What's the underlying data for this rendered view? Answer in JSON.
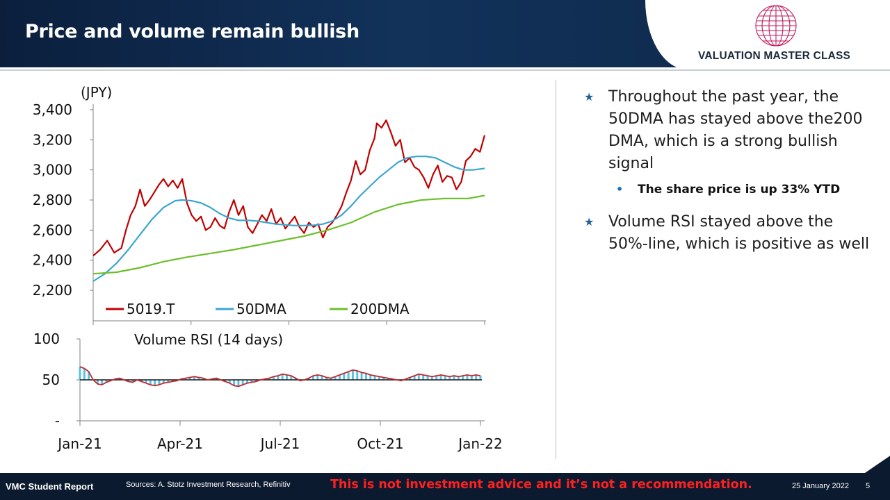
{
  "slide": {
    "title": "Price and volume remain bullish",
    "logo_text": "VALUATION MASTER CLASS"
  },
  "bullets": [
    {
      "text": "Throughout the past year, the 50DMA has stayed above the200 DMA, which is a strong bullish signal"
    },
    {
      "sub": "The share price is up 33% YTD"
    },
    {
      "text": "Volume RSI stayed above the 50%-line, which is positive as well"
    }
  ],
  "footer": {
    "left": "VMC Student Report",
    "sources": "Sources: A. Stotz Investment Research, Refinitiv",
    "warning": "This is not investment advice and it’s not a recommendation.",
    "date": "25 January 2022",
    "page": "5"
  },
  "colors": {
    "price": "#c00000",
    "dma50": "#3aa6d0",
    "dma200": "#6cbf2a",
    "rsi_fill": "#5bc0e6",
    "rsi_line": "#c0282d",
    "header_bg": "#0e2748",
    "warning": "#ff2020"
  },
  "chart_data": [
    {
      "type": "line",
      "ylabel": "(JPY)",
      "ylim": [
        2200,
        3400
      ],
      "yticks": [
        "3,400",
        "3,200",
        "3,000",
        "2,800",
        "2,600",
        "2,400",
        "2,200"
      ],
      "legend_position": "bottom",
      "series": [
        {
          "name": "5019.T",
          "color": "#c00000",
          "points": [
            [
              0,
              2430
            ],
            [
              3,
              2470
            ],
            [
              6,
              2530
            ],
            [
              9,
              2450
            ],
            [
              12,
              2480
            ],
            [
              14,
              2600
            ],
            [
              16,
              2700
            ],
            [
              18,
              2760
            ],
            [
              20,
              2870
            ],
            [
              22,
              2760
            ],
            [
              24,
              2800
            ],
            [
              26,
              2850
            ],
            [
              28,
              2900
            ],
            [
              30,
              2940
            ],
            [
              32,
              2890
            ],
            [
              34,
              2930
            ],
            [
              36,
              2880
            ],
            [
              38,
              2940
            ],
            [
              40,
              2780
            ],
            [
              42,
              2700
            ],
            [
              44,
              2660
            ],
            [
              46,
              2690
            ],
            [
              48,
              2600
            ],
            [
              50,
              2620
            ],
            [
              52,
              2680
            ],
            [
              54,
              2630
            ],
            [
              56,
              2610
            ],
            [
              58,
              2720
            ],
            [
              60,
              2800
            ],
            [
              62,
              2700
            ],
            [
              64,
              2760
            ],
            [
              66,
              2620
            ],
            [
              68,
              2580
            ],
            [
              70,
              2640
            ],
            [
              72,
              2700
            ],
            [
              74,
              2660
            ],
            [
              76,
              2740
            ],
            [
              78,
              2640
            ],
            [
              80,
              2680
            ],
            [
              82,
              2610
            ],
            [
              84,
              2650
            ],
            [
              86,
              2690
            ],
            [
              88,
              2620
            ],
            [
              90,
              2580
            ],
            [
              92,
              2650
            ],
            [
              94,
              2620
            ],
            [
              96,
              2640
            ],
            [
              98,
              2550
            ],
            [
              100,
              2620
            ],
            [
              102,
              2650
            ],
            [
              104,
              2700
            ],
            [
              106,
              2760
            ],
            [
              108,
              2850
            ],
            [
              110,
              2930
            ],
            [
              112,
              3060
            ],
            [
              114,
              2970
            ],
            [
              116,
              3000
            ],
            [
              118,
              3130
            ],
            [
              120,
              3210
            ],
            [
              121,
              3310
            ],
            [
              123,
              3280
            ],
            [
              125,
              3330
            ],
            [
              127,
              3250
            ],
            [
              129,
              3160
            ],
            [
              131,
              3200
            ],
            [
              133,
              3050
            ],
            [
              135,
              3080
            ],
            [
              137,
              3020
            ],
            [
              139,
              3000
            ],
            [
              141,
              2950
            ],
            [
              143,
              2880
            ],
            [
              145,
              2970
            ],
            [
              147,
              3030
            ],
            [
              149,
              2920
            ],
            [
              151,
              2960
            ],
            [
              153,
              2950
            ],
            [
              155,
              2870
            ],
            [
              157,
              2920
            ],
            [
              159,
              3060
            ],
            [
              161,
              3090
            ],
            [
              163,
              3140
            ],
            [
              165,
              3120
            ],
            [
              167,
              3230
            ]
          ]
        },
        {
          "name": "50DMA",
          "color": "#3aa6d0",
          "points": [
            [
              0,
              2260
            ],
            [
              5,
              2310
            ],
            [
              10,
              2380
            ],
            [
              15,
              2470
            ],
            [
              20,
              2570
            ],
            [
              25,
              2670
            ],
            [
              30,
              2750
            ],
            [
              35,
              2795
            ],
            [
              38,
              2800
            ],
            [
              42,
              2795
            ],
            [
              46,
              2780
            ],
            [
              50,
              2750
            ],
            [
              54,
              2710
            ],
            [
              58,
              2680
            ],
            [
              62,
              2665
            ],
            [
              66,
              2665
            ],
            [
              70,
              2660
            ],
            [
              74,
              2650
            ],
            [
              78,
              2640
            ],
            [
              82,
              2635
            ],
            [
              86,
              2630
            ],
            [
              90,
              2630
            ],
            [
              94,
              2632
            ],
            [
              98,
              2640
            ],
            [
              102,
              2660
            ],
            [
              106,
              2700
            ],
            [
              110,
              2760
            ],
            [
              114,
              2830
            ],
            [
              118,
              2890
            ],
            [
              122,
              2950
            ],
            [
              126,
              3000
            ],
            [
              130,
              3050
            ],
            [
              134,
              3080
            ],
            [
              138,
              3090
            ],
            [
              142,
              3090
            ],
            [
              146,
              3080
            ],
            [
              150,
              3050
            ],
            [
              154,
              3020
            ],
            [
              158,
              3000
            ],
            [
              162,
              3000
            ],
            [
              167,
              3010
            ]
          ]
        },
        {
          "name": "200DMA",
          "color": "#6cbf2a",
          "points": [
            [
              0,
              2310
            ],
            [
              10,
              2320
            ],
            [
              20,
              2350
            ],
            [
              30,
              2390
            ],
            [
              40,
              2420
            ],
            [
              50,
              2445
            ],
            [
              60,
              2470
            ],
            [
              70,
              2500
            ],
            [
              80,
              2530
            ],
            [
              90,
              2560
            ],
            [
              100,
              2600
            ],
            [
              110,
              2650
            ],
            [
              120,
              2720
            ],
            [
              130,
              2770
            ],
            [
              140,
              2800
            ],
            [
              150,
              2810
            ],
            [
              160,
              2810
            ],
            [
              167,
              2830
            ]
          ]
        }
      ]
    },
    {
      "type": "area",
      "title": "Volume RSI (14 days)",
      "ylim": [
        0,
        100
      ],
      "yticks": [
        "100",
        "50",
        "-"
      ],
      "baseline": 50,
      "x_ticks": [
        "Jan-21",
        "Apr-21",
        "Jul-21",
        "Oct-21",
        "Jan-22"
      ],
      "values": [
        66,
        64,
        60,
        50,
        45,
        44,
        47,
        49,
        51,
        52,
        50,
        48,
        47,
        50,
        48,
        46,
        44,
        43,
        44,
        46,
        47,
        48,
        49,
        51,
        52,
        53,
        54,
        53,
        52,
        50,
        51,
        52,
        50,
        48,
        46,
        43,
        42,
        44,
        46,
        47,
        48,
        50,
        51,
        52,
        54,
        55,
        57,
        56,
        55,
        52,
        49,
        50,
        52,
        55,
        56,
        55,
        53,
        52,
        54,
        56,
        58,
        60,
        62,
        61,
        59,
        58,
        56,
        55,
        54,
        53,
        52,
        51,
        50,
        49,
        51,
        53,
        55,
        57,
        56,
        55,
        54,
        55,
        56,
        55,
        54,
        55,
        54,
        55,
        56,
        55,
        56,
        55
      ]
    }
  ]
}
